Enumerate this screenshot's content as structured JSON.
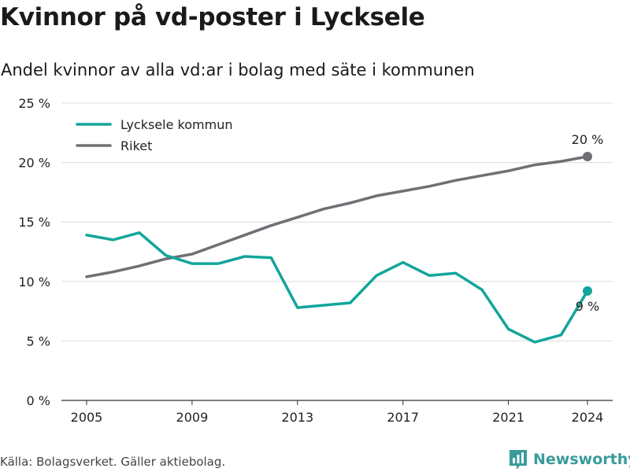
{
  "header": {
    "title": "Kvinnor på vd-poster i Lycksele",
    "subtitle": "Andel kvinnor av alla vd:ar i bolag med säte i kommunen"
  },
  "footer": {
    "source": "Källa: Bolagsverket. Gäller aktiebolag.",
    "brand": "Newsworthy",
    "brand_icon": "newsworthy-logo-icon"
  },
  "colors": {
    "lycksele": "#12a59b",
    "riket": "#6f6f75",
    "grid": "#dcdcdc",
    "brand": "#3a9b9b"
  },
  "chart_data": {
    "type": "line",
    "x": [
      2005,
      2006,
      2007,
      2008,
      2009,
      2010,
      2011,
      2012,
      2013,
      2014,
      2015,
      2016,
      2017,
      2018,
      2019,
      2020,
      2021,
      2022,
      2023,
      2024
    ],
    "xticks": [
      2005,
      2009,
      2013,
      2017,
      2021,
      2024
    ],
    "xtick_labels": [
      "2005",
      "2009",
      "2013",
      "2017",
      "2021",
      "2024"
    ],
    "yticks": [
      0,
      5,
      10,
      15,
      20,
      25
    ],
    "ytick_labels": [
      "0 %",
      "5 %",
      "10 %",
      "15 %",
      "20 %",
      "25 %"
    ],
    "ylim": [
      0,
      25
    ],
    "xlim": [
      2005,
      2024
    ],
    "grid": true,
    "legend_position": "top-left",
    "series": [
      {
        "name": "Lycksele kommun",
        "values": [
          13.9,
          13.5,
          14.1,
          12.2,
          11.5,
          11.5,
          12.1,
          12.0,
          7.8,
          8.0,
          8.2,
          10.5,
          11.6,
          10.5,
          10.7,
          9.3,
          6.0,
          4.9,
          5.5,
          9.2
        ],
        "end_label": "9 %"
      },
      {
        "name": "Riket",
        "values": [
          10.4,
          10.8,
          11.3,
          11.9,
          12.3,
          13.1,
          13.9,
          14.7,
          15.4,
          16.1,
          16.6,
          17.2,
          17.6,
          18.0,
          18.5,
          18.9,
          19.3,
          19.8,
          20.1,
          20.5
        ],
        "end_label": "20 %"
      }
    ]
  }
}
